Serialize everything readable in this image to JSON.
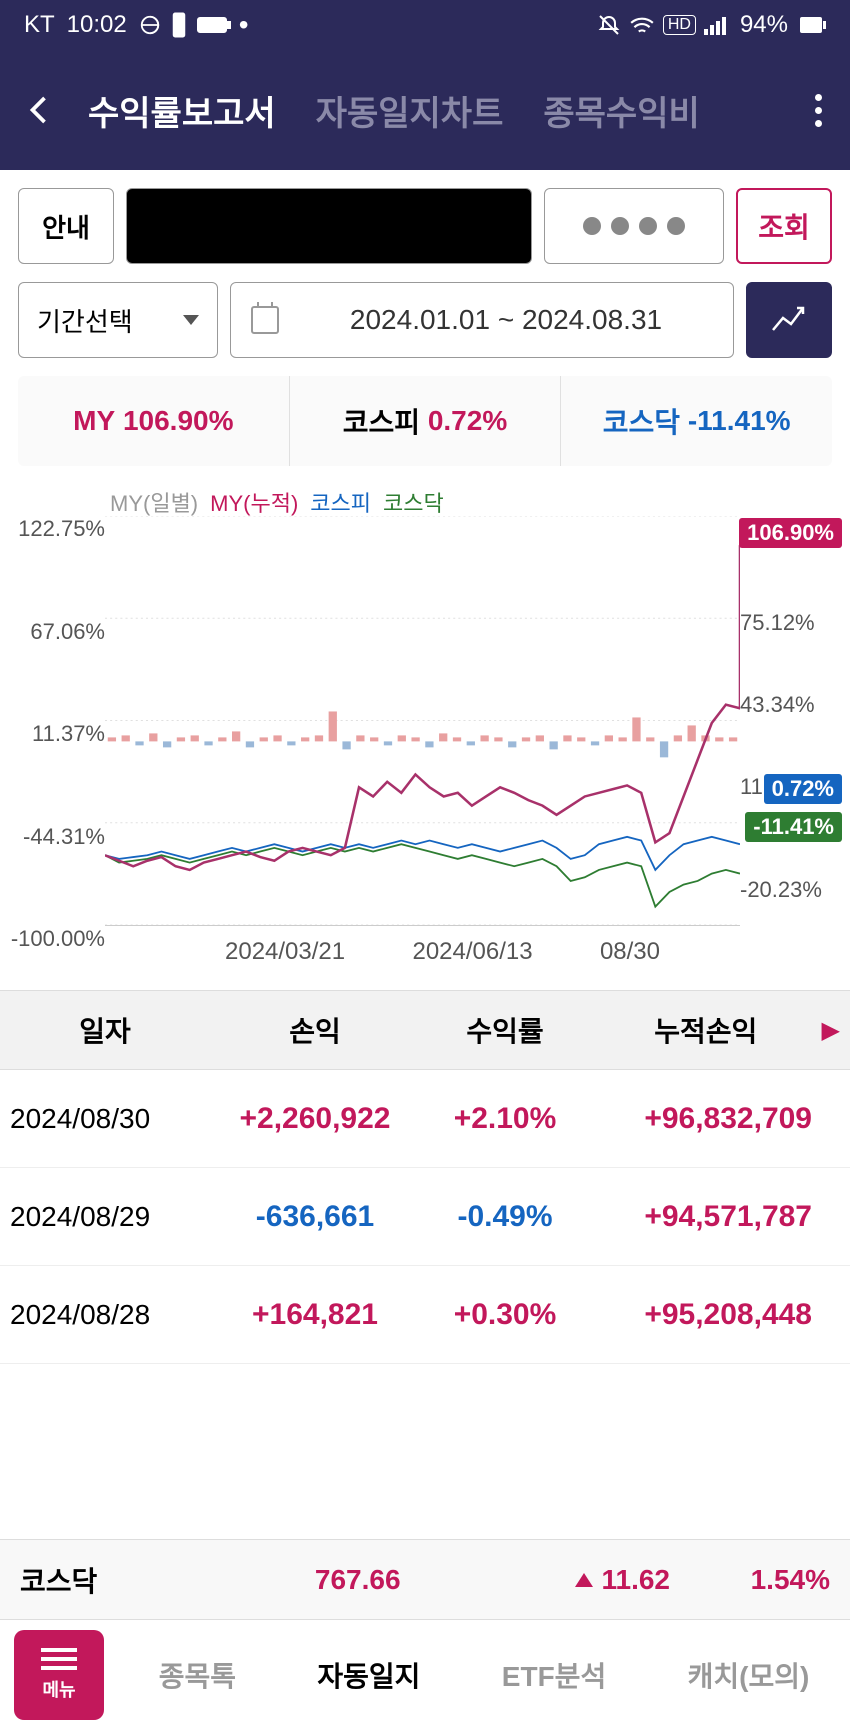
{
  "status": {
    "carrier": "KT",
    "time": "10:02",
    "battery": "94%"
  },
  "header": {
    "tabs": [
      "수익률보고서",
      "자동일지차트",
      "종목수익비"
    ]
  },
  "controls": {
    "info_label": "안내",
    "query_label": "조회",
    "period_label": "기간선택",
    "date_range": "2024.01.01 ~ 2024.08.31"
  },
  "summary": {
    "my_label": "MY",
    "my_value": "106.90%",
    "kospi_label": "코스피",
    "kospi_value": "0.72%",
    "kosdaq_label": "코스닥",
    "kosdaq_value": "-11.41%"
  },
  "chart": {
    "legend": {
      "daily": "MY(일별)",
      "cum": "MY(누적)",
      "kospi": "코스피",
      "kosdaq": "코스닥"
    },
    "y_left": [
      "122.75%",
      "67.06%",
      "11.37%",
      "-44.31%",
      "-100.00%"
    ],
    "y_right": [
      "75.12%",
      "43.34%",
      "11.55%",
      "-20.23%"
    ],
    "x_labels": [
      "2024/03/21",
      "2024/06/13",
      "08/30"
    ],
    "flags": {
      "my": "106.90%",
      "kospi": "0.72%",
      "kosdaq": "-11.41%"
    },
    "colors": {
      "my_cum": "#a8316a",
      "kospi": "#1565c0",
      "kosdaq": "#2e7d32",
      "daily_bar": "#e8a0a0",
      "grid": "#e0e0e0",
      "bg": "#ffffff"
    },
    "y_left_range": [
      -100,
      122.75
    ],
    "lines": {
      "my_cum": [
        -62,
        -65,
        -68,
        -65,
        -63,
        -68,
        -70,
        -66,
        -64,
        -62,
        -60,
        -63,
        -65,
        -60,
        -58,
        -60,
        -62,
        -58,
        -25,
        -30,
        -22,
        -28,
        -18,
        -25,
        -30,
        -28,
        -35,
        -30,
        -25,
        -28,
        -32,
        -35,
        -40,
        -35,
        -30,
        -28,
        -26,
        -24,
        -28,
        -55,
        -50,
        -30,
        -10,
        10,
        20,
        18
      ],
      "kospi": [
        -62,
        -64,
        -63,
        -62,
        -60,
        -62,
        -64,
        -62,
        -60,
        -58,
        -60,
        -58,
        -56,
        -58,
        -60,
        -58,
        -56,
        -58,
        -56,
        -58,
        -56,
        -54,
        -56,
        -54,
        -56,
        -58,
        -56,
        -58,
        -60,
        -58,
        -56,
        -54,
        -58,
        -64,
        -62,
        -56,
        -54,
        -52,
        -54,
        -70,
        -62,
        -56,
        -54,
        -52,
        -54,
        -56
      ],
      "kosdaq": [
        -62,
        -66,
        -65,
        -64,
        -62,
        -64,
        -66,
        -64,
        -62,
        -60,
        -62,
        -60,
        -58,
        -60,
        -62,
        -60,
        -58,
        -60,
        -58,
        -60,
        -58,
        -56,
        -58,
        -60,
        -62,
        -64,
        -62,
        -64,
        -66,
        -68,
        -66,
        -64,
        -68,
        -76,
        -74,
        -70,
        -68,
        -66,
        -68,
        -90,
        -82,
        -78,
        -76,
        -72,
        -70,
        -72
      ]
    },
    "daily_bars": [
      2,
      3,
      -2,
      4,
      -3,
      2,
      3,
      -2,
      2,
      5,
      -3,
      2,
      3,
      -2,
      2,
      3,
      15,
      -4,
      3,
      2,
      -2,
      3,
      2,
      -3,
      4,
      2,
      -2,
      3,
      2,
      -3,
      2,
      3,
      -4,
      3,
      2,
      -2,
      3,
      2,
      12,
      2,
      -8,
      3,
      8,
      3,
      2,
      2
    ]
  },
  "table": {
    "headers": {
      "date": "일자",
      "pnl": "손익",
      "ret": "수익률",
      "cum": "누적손익"
    },
    "rows": [
      {
        "date": "2024/08/30",
        "pnl": "+2,260,922",
        "ret": "+2.10%",
        "cum": "+96,832,709",
        "pnl_dir": "pos",
        "ret_dir": "pos"
      },
      {
        "date": "2024/08/29",
        "pnl": "-636,661",
        "ret": "-0.49%",
        "cum": "+94,571,787",
        "pnl_dir": "neg",
        "ret_dir": "neg"
      },
      {
        "date": "2024/08/28",
        "pnl": "+164,821",
        "ret": "+0.30%",
        "cum": "+95,208,448",
        "pnl_dir": "pos",
        "ret_dir": "pos"
      }
    ]
  },
  "ticker": {
    "name": "코스닥",
    "value": "767.66",
    "change": "11.62",
    "pct": "1.54%"
  },
  "bottom_nav": {
    "menu": "메뉴",
    "items": [
      "종목톡",
      "자동일지",
      "ETF분석",
      "캐치(모의)"
    ],
    "active": 1
  }
}
